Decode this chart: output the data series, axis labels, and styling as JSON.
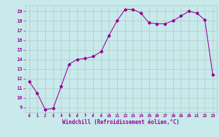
{
  "x": [
    0,
    1,
    2,
    3,
    4,
    5,
    6,
    7,
    8,
    9,
    10,
    11,
    12,
    13,
    14,
    15,
    16,
    17,
    18,
    19,
    20,
    21,
    22,
    23
  ],
  "y": [
    11.7,
    10.5,
    8.8,
    8.9,
    11.2,
    13.5,
    14.0,
    14.1,
    14.3,
    14.8,
    16.5,
    18.0,
    19.2,
    19.2,
    18.8,
    17.8,
    17.7,
    17.7,
    18.0,
    18.5,
    19.0,
    18.8,
    18.1,
    12.4
  ],
  "line_color": "#990099",
  "marker": "D",
  "markersize": 2,
  "linewidth": 0.8,
  "xlabel": "Windchill (Refroidissement éolien,°C)",
  "xlim": [
    -0.5,
    23.5
  ],
  "ylim": [
    8.5,
    19.6
  ],
  "yticks": [
    9,
    10,
    11,
    12,
    13,
    14,
    15,
    16,
    17,
    18,
    19
  ],
  "xticks": [
    0,
    1,
    2,
    3,
    4,
    5,
    6,
    7,
    8,
    9,
    10,
    11,
    12,
    13,
    14,
    15,
    16,
    17,
    18,
    19,
    20,
    21,
    22,
    23
  ],
  "bg_color": "#c8eaea",
  "grid_color": "#b0c8c8",
  "tick_color": "#990099",
  "label_color": "#990099"
}
